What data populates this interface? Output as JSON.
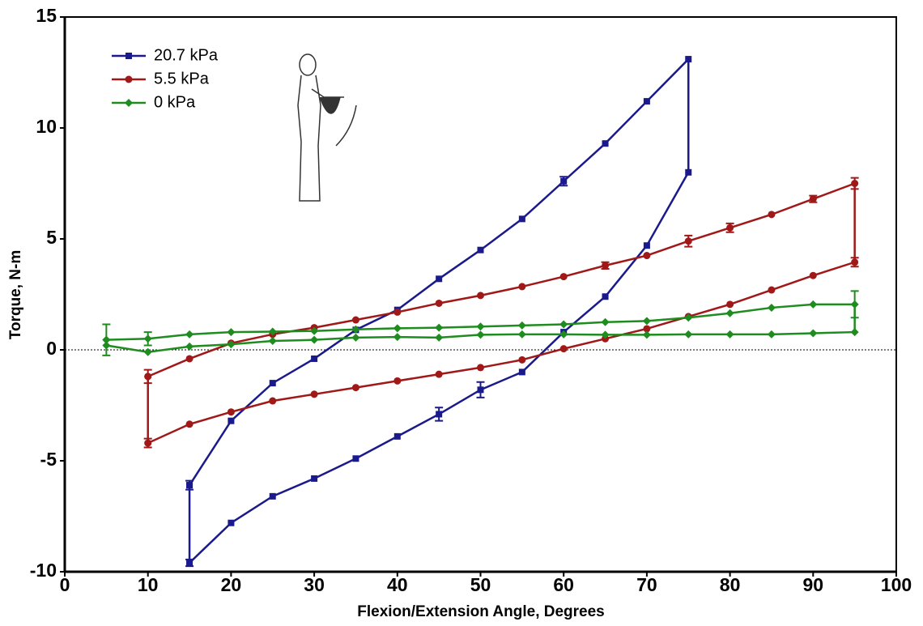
{
  "chart_data": {
    "type": "line",
    "x_label": "Flexion/Extension Angle, Degrees",
    "y_label": "Torque, N-m",
    "xlim": [
      0,
      100
    ],
    "ylim": [
      -10,
      15
    ],
    "xticks": [
      0,
      10,
      20,
      30,
      40,
      50,
      60,
      70,
      80,
      90,
      100
    ],
    "yticks": [
      -10,
      -5,
      0,
      5,
      10,
      15
    ],
    "zero_line": true,
    "legend": "upper left",
    "series": [
      {
        "name": "20.7 kPa",
        "color": "#1a1a8c",
        "marker": "square",
        "x": [
          15,
          20,
          25,
          30,
          35,
          40,
          45,
          50,
          55,
          60,
          65,
          70,
          75,
          75,
          70,
          65,
          60,
          55,
          50,
          45,
          40,
          35,
          30,
          25,
          20,
          15,
          15
        ],
        "values": [
          -6.1,
          -3.2,
          -1.5,
          -0.4,
          0.9,
          1.8,
          3.2,
          4.5,
          5.9,
          7.6,
          9.3,
          11.2,
          13.1,
          8.0,
          4.7,
          2.4,
          0.8,
          -1.0,
          -1.8,
          -2.9,
          -3.9,
          -4.9,
          -5.8,
          -6.6,
          -7.8,
          -9.6,
          -6.1
        ],
        "errors": [
          0.2,
          null,
          null,
          null,
          null,
          null,
          null,
          null,
          null,
          0.2,
          null,
          null,
          null,
          null,
          null,
          null,
          null,
          null,
          0.35,
          0.3,
          null,
          null,
          null,
          null,
          null,
          0.15,
          null
        ]
      },
      {
        "name": "5.5 kPa",
        "color": "#a01818",
        "marker": "circle",
        "x": [
          10,
          15,
          20,
          25,
          30,
          35,
          40,
          45,
          50,
          55,
          60,
          65,
          70,
          75,
          80,
          85,
          90,
          95,
          95,
          90,
          85,
          80,
          75,
          70,
          65,
          60,
          55,
          50,
          45,
          40,
          35,
          30,
          25,
          20,
          15,
          10,
          10
        ],
        "values": [
          -1.2,
          -0.4,
          0.3,
          0.7,
          1.0,
          1.35,
          1.7,
          2.1,
          2.45,
          2.85,
          3.3,
          3.8,
          4.25,
          4.9,
          5.5,
          6.1,
          6.8,
          7.5,
          3.95,
          3.35,
          2.7,
          2.05,
          1.5,
          0.95,
          0.5,
          0.05,
          -0.45,
          -0.8,
          -1.1,
          -1.4,
          -1.7,
          -2.0,
          -2.3,
          -2.8,
          -3.35,
          -4.2,
          -1.2
        ],
        "errors": [
          0.3,
          null,
          null,
          null,
          null,
          null,
          null,
          null,
          null,
          null,
          null,
          0.15,
          null,
          0.25,
          0.2,
          null,
          0.15,
          0.25,
          0.2,
          null,
          null,
          null,
          null,
          null,
          null,
          null,
          null,
          null,
          null,
          null,
          null,
          null,
          null,
          null,
          null,
          0.2,
          null
        ]
      },
      {
        "name": "0 kPa",
        "color": "#1e8c1e",
        "marker": "diamond",
        "x": [
          5,
          10,
          15,
          20,
          25,
          30,
          35,
          40,
          45,
          50,
          55,
          60,
          65,
          70,
          75,
          80,
          85,
          90,
          95,
          95,
          90,
          85,
          80,
          75,
          70,
          65,
          60,
          55,
          50,
          45,
          40,
          35,
          30,
          25,
          20,
          15,
          10,
          5,
          5
        ],
        "values": [
          0.45,
          0.5,
          0.7,
          0.8,
          0.82,
          0.85,
          0.92,
          0.97,
          1.0,
          1.05,
          1.1,
          1.15,
          1.25,
          1.3,
          1.45,
          1.65,
          1.9,
          2.05,
          2.05,
          0.8,
          0.75,
          0.7,
          0.7,
          0.7,
          0.68,
          0.68,
          0.7,
          0.7,
          0.68,
          0.55,
          0.58,
          0.55,
          0.45,
          0.4,
          0.25,
          0.15,
          -0.1,
          0.2,
          0.45
        ],
        "errors": [
          0.7,
          0.3,
          null,
          null,
          null,
          null,
          null,
          null,
          null,
          null,
          null,
          null,
          null,
          null,
          null,
          null,
          null,
          null,
          0.6,
          null,
          null,
          null,
          null,
          null,
          null,
          null,
          null,
          null,
          null,
          null,
          null,
          null,
          null,
          null,
          null,
          null,
          null,
          null,
          null
        ]
      }
    ]
  }
}
